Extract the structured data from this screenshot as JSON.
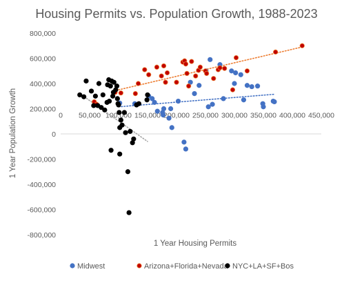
{
  "chart_data": {
    "type": "scatter",
    "title": "Housing Permits vs. Population Growth, 1988-2023",
    "xlabel": "1 Year Housing Permits",
    "ylabel": "1 Year Population Growth",
    "xlim": [
      0,
      450000
    ],
    "ylim": [
      -800000,
      800000
    ],
    "x_ticks": [
      0,
      50000,
      100000,
      150000,
      200000,
      250000,
      300000,
      350000,
      400000,
      450000
    ],
    "y_ticks": [
      -800000,
      -600000,
      -400000,
      -200000,
      0,
      200000,
      400000,
      600000,
      800000
    ],
    "x_tick_labels": [
      "0",
      "50,000",
      "100,000",
      "150,000",
      "200,000",
      "250,000",
      "300,000",
      "350,000",
      "400,000",
      "450,000"
    ],
    "y_tick_labels": [
      "-800,000",
      "-600,000",
      "-400,000",
      "-200,000",
      "0",
      "200,000",
      "400,000",
      "600,000",
      "800,000"
    ],
    "grid": false,
    "legend_position": "bottom",
    "series": [
      {
        "name": "Midwest",
        "color": "#4472C4",
        "points": [
          [
            102000,
            245000
          ],
          [
            128000,
            240000
          ],
          [
            152000,
            300000
          ],
          [
            158000,
            280000
          ],
          [
            162000,
            250000
          ],
          [
            167000,
            180000
          ],
          [
            176000,
            170000
          ],
          [
            178000,
            200000
          ],
          [
            177000,
            150000
          ],
          [
            187000,
            125000
          ],
          [
            190000,
            200000
          ],
          [
            192000,
            50000
          ],
          [
            203000,
            260000
          ],
          [
            213000,
            -65000
          ],
          [
            216000,
            -120000
          ],
          [
            224000,
            410000
          ],
          [
            231000,
            320000
          ],
          [
            239000,
            385000
          ],
          [
            251000,
            500000
          ],
          [
            255000,
            215000
          ],
          [
            258000,
            590000
          ],
          [
            262000,
            235000
          ],
          [
            275000,
            550000
          ],
          [
            281000,
            280000
          ],
          [
            295000,
            500000
          ],
          [
            300000,
            400000
          ],
          [
            302000,
            485000
          ],
          [
            311000,
            470000
          ],
          [
            316000,
            270000
          ],
          [
            322000,
            385000
          ],
          [
            330000,
            375000
          ],
          [
            340000,
            380000
          ],
          [
            349000,
            240000
          ],
          [
            350000,
            215000
          ],
          [
            367000,
            260000
          ],
          [
            369000,
            255000
          ]
        ]
      },
      {
        "name": "Arizona+Florida+Nevada",
        "color": "#C00000",
        "points": [
          [
            58000,
            255000
          ],
          [
            62000,
            235000
          ],
          [
            94000,
            330000
          ],
          [
            104000,
            325000
          ],
          [
            129000,
            320000
          ],
          [
            134000,
            400000
          ],
          [
            145000,
            510000
          ],
          [
            152000,
            470000
          ],
          [
            166000,
            530000
          ],
          [
            174000,
            460000
          ],
          [
            178000,
            540000
          ],
          [
            181000,
            410000
          ],
          [
            184000,
            485000
          ],
          [
            200000,
            410000
          ],
          [
            211000,
            570000
          ],
          [
            214000,
            580000
          ],
          [
            216000,
            555000
          ],
          [
            218000,
            480000
          ],
          [
            221000,
            380000
          ],
          [
            226000,
            575000
          ],
          [
            233000,
            460000
          ],
          [
            238000,
            505000
          ],
          [
            241000,
            530000
          ],
          [
            250000,
            500000
          ],
          [
            252000,
            480000
          ],
          [
            264000,
            440000
          ],
          [
            272000,
            510000
          ],
          [
            275000,
            525000
          ],
          [
            283000,
            520000
          ],
          [
            297000,
            350000
          ],
          [
            303000,
            605000
          ],
          [
            322000,
            500000
          ],
          [
            371000,
            650000
          ],
          [
            417000,
            700000
          ]
        ]
      },
      {
        "name": "NYC+LA+SF+Bos",
        "color": "#000000",
        "points": [
          [
            33000,
            310000
          ],
          [
            40000,
            295000
          ],
          [
            44000,
            420000
          ],
          [
            53000,
            340000
          ],
          [
            57000,
            225000
          ],
          [
            60000,
            300000
          ],
          [
            64000,
            225000
          ],
          [
            66000,
            400000
          ],
          [
            70000,
            210000
          ],
          [
            73000,
            310000
          ],
          [
            76000,
            190000
          ],
          [
            80000,
            250000
          ],
          [
            81000,
            390000
          ],
          [
            83000,
            430000
          ],
          [
            84000,
            260000
          ],
          [
            86000,
            380000
          ],
          [
            88000,
            420000
          ],
          [
            90000,
            300000
          ],
          [
            91000,
            330000
          ],
          [
            92000,
            410000
          ],
          [
            95000,
            350000
          ],
          [
            97000,
            380000
          ],
          [
            98000,
            280000
          ],
          [
            99000,
            240000
          ],
          [
            100000,
            230000
          ],
          [
            101000,
            170000
          ],
          [
            102000,
            50000
          ],
          [
            104000,
            110000
          ],
          [
            106000,
            70000
          ],
          [
            110000,
            170000
          ],
          [
            112000,
            10000
          ],
          [
            120000,
            20000
          ],
          [
            124000,
            -70000
          ],
          [
            126000,
            -40000
          ],
          [
            131000,
            230000
          ],
          [
            135000,
            240000
          ],
          [
            149000,
            270000
          ],
          [
            150000,
            310000
          ],
          [
            87000,
            -130000
          ],
          [
            102000,
            -160000
          ],
          [
            116000,
            -300000
          ],
          [
            118000,
            -625000
          ]
        ]
      }
    ],
    "trendlines": [
      {
        "series": "Midwest",
        "style": "dotted",
        "color": "#4472C4",
        "from": [
          100000,
          215000
        ],
        "to": [
          370000,
          315000
        ]
      },
      {
        "series": "Arizona+Florida+Nevada",
        "style": "dotted",
        "color": "#ED7D31",
        "from": [
          100000,
          350000
        ],
        "to": [
          417000,
          690000
        ]
      },
      {
        "series": "NYC+LA+SF+Bos",
        "style": "dotted",
        "color": "#A6A6A6",
        "from": [
          33000,
          320000
        ],
        "to": [
          150000,
          -60000
        ]
      }
    ]
  }
}
